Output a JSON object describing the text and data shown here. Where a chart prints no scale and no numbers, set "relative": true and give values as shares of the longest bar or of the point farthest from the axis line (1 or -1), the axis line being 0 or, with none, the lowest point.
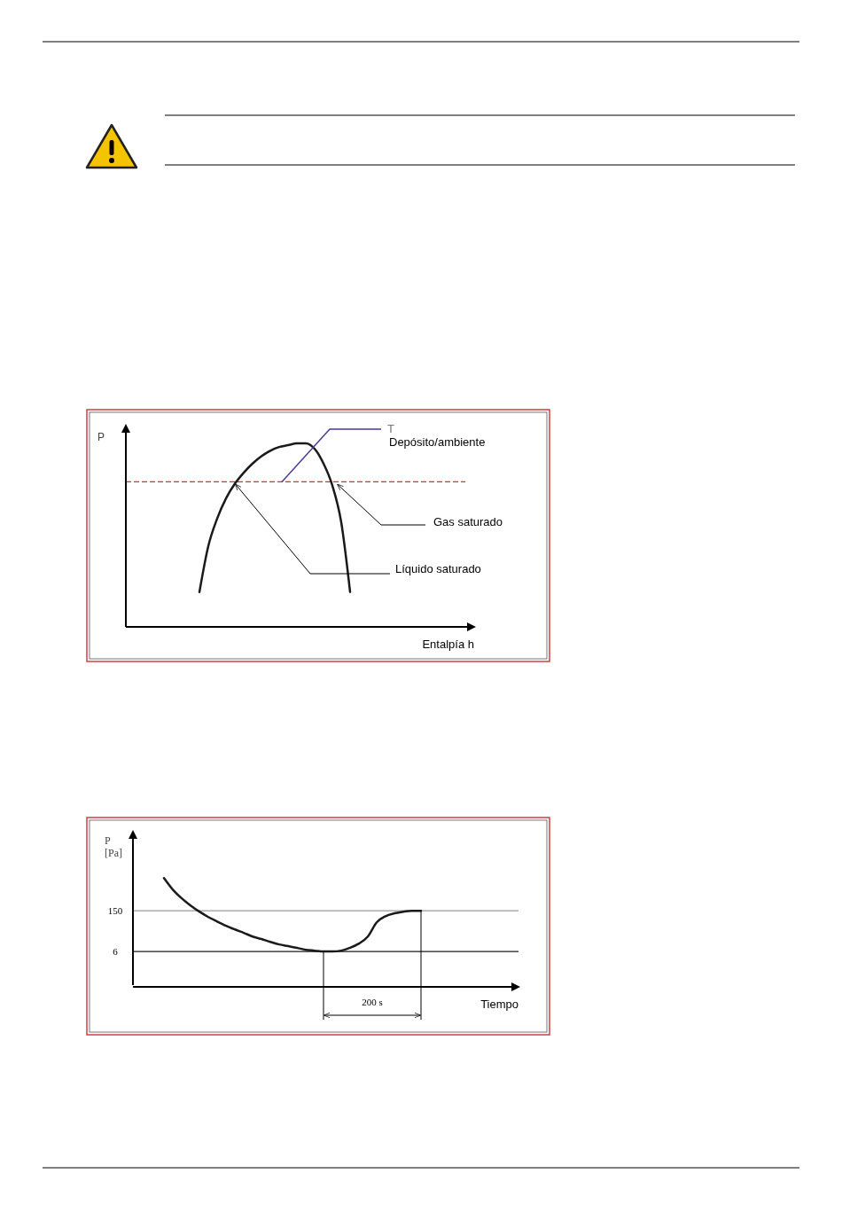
{
  "chart_data": [
    {
      "type": "line",
      "relative": true,
      "ylabel": "P",
      "xlabel": "Entalpía h",
      "categories": [
        null,
        null,
        null,
        null,
        null,
        null,
        null,
        null,
        null,
        null,
        null,
        null,
        null,
        null,
        null,
        null,
        null,
        null,
        null,
        null,
        null,
        null,
        null,
        null,
        null,
        null,
        null,
        null,
        null,
        null,
        null,
        null,
        null,
        null,
        null,
        null,
        null,
        null,
        null
      ],
      "series": [
        {
          "color": "#1a1a1a",
          "values": [
            null,
            null,
            null,
            null,
            null,
            null,
            null,
            null,
            0.19,
            0.44,
            0.59,
            0.7,
            0.78,
            0.84,
            0.89,
            0.93,
            0.96,
            0.98,
            0.99,
            1,
            1,
            0.97,
            0.89,
            0.77,
            0.57,
            0.19,
            null,
            null,
            null,
            null,
            null,
            null,
            null,
            null,
            null,
            null,
            null,
            null,
            null
          ]
        }
      ],
      "ref_lines": [
        {
          "axis": "y",
          "value": 0.79,
          "color": "#cc3333",
          "line_style": "dashed"
        }
      ],
      "annotations": [
        "T",
        "Depósito/ambiente",
        "Gas saturado",
        "Líquido saturado"
      ]
    },
    {
      "type": "line",
      "ylabel": "P [Pa]",
      "xlabel": "Tiempo",
      "ylim": [
        -113,
        430
      ],
      "yticks": [
        6,
        150
      ],
      "categories": [
        null,
        null,
        null,
        null,
        null,
        null,
        null,
        null,
        null,
        null,
        null,
        null,
        null,
        null,
        null,
        null,
        null,
        null,
        null,
        null,
        null,
        null,
        null,
        null,
        null,
        null,
        null,
        null,
        null,
        null,
        null,
        null,
        null,
        null,
        null,
        null,
        null,
        null,
        null,
        null,
        null,
        null,
        null,
        null
      ],
      "series": [
        {
          "color": "#1a1a1a",
          "values": [
            null,
            null,
            null,
            266,
            225,
            194,
            169,
            147,
            128,
            112,
            97,
            84,
            72,
            59,
            50,
            40,
            31,
            25,
            19,
            12,
            9,
            6,
            6,
            9,
            19,
            34,
            59,
            109,
            131,
            141,
            147,
            150,
            150,
            null,
            null,
            null,
            null,
            null,
            null,
            null,
            null,
            null,
            null,
            null
          ]
        }
      ],
      "ref_lines": [
        {
          "axis": "y",
          "value": 150,
          "color": "#999999"
        },
        {
          "axis": "y",
          "value": 6,
          "color": "#1a1a1a"
        }
      ],
      "annotations": [
        "200 s"
      ]
    }
  ]
}
